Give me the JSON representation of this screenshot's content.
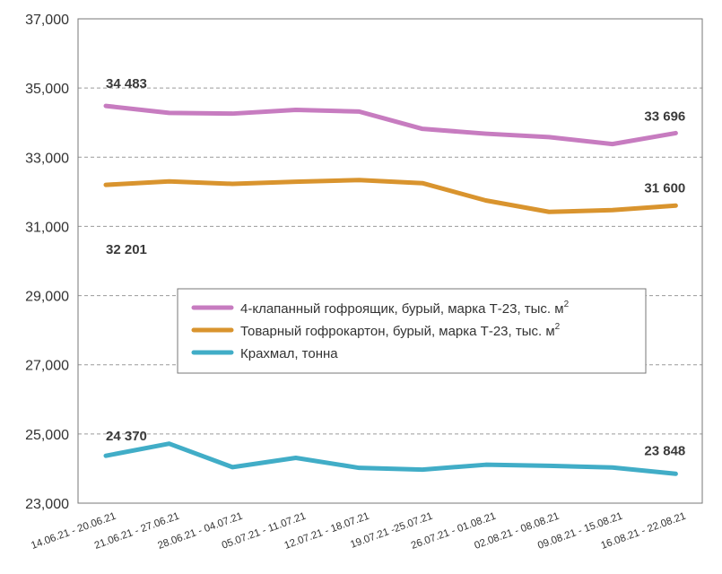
{
  "chart_data": {
    "type": "line",
    "categories": [
      "14.06.21 - 20.06.21",
      "21.06.21 - 27.06.21",
      "28.06.21 - 04.07.21",
      "05.07.21 - 11.07.21",
      "12.07.21 - 18.07.21",
      "19.07.21 -25.07.21",
      "26.07.21 - 01.08.21",
      "02.08.21 - 08.08.21",
      "09.08.21 - 15.08.21",
      "16.08.21 - 22.08.21"
    ],
    "ylim": [
      23000,
      37000
    ],
    "yticks": [
      "23,000",
      "25,000",
      "27,000",
      "29,000",
      "31,000",
      "33,000",
      "35,000",
      "37,000"
    ],
    "grid": "horizontal dashed",
    "legend_position": "center-right",
    "series": [
      {
        "name": "4-клапанный гофроящик, бурый, марка Т-23, тыс. м",
        "unit_sup": "2",
        "color": "#c77cc0",
        "values": [
          34483,
          34280,
          34260,
          34370,
          34320,
          33820,
          33680,
          33580,
          33380,
          33696
        ],
        "labels": [
          {
            "index": 0,
            "text": "34 483"
          },
          {
            "index": 9,
            "text": "33 696"
          }
        ]
      },
      {
        "name": "Товарный гофрокартон, бурый, марка Т-23, тыс. м",
        "unit_sup": "2",
        "color": "#d9942e",
        "values": [
          32201,
          32300,
          32230,
          32290,
          32340,
          32250,
          31750,
          31420,
          31470,
          31600
        ],
        "labels": [
          {
            "index": 0,
            "text": "32 201"
          },
          {
            "index": 9,
            "text": "31 600"
          }
        ]
      },
      {
        "name": "Крахмал, тонна",
        "unit_sup": "",
        "color": "#41adc7",
        "values": [
          24370,
          24720,
          24040,
          24310,
          24020,
          23970,
          24110,
          24080,
          24030,
          23848
        ],
        "labels": [
          {
            "index": 0,
            "text": "24 370"
          },
          {
            "index": 9,
            "text": "23 848"
          }
        ]
      }
    ]
  }
}
